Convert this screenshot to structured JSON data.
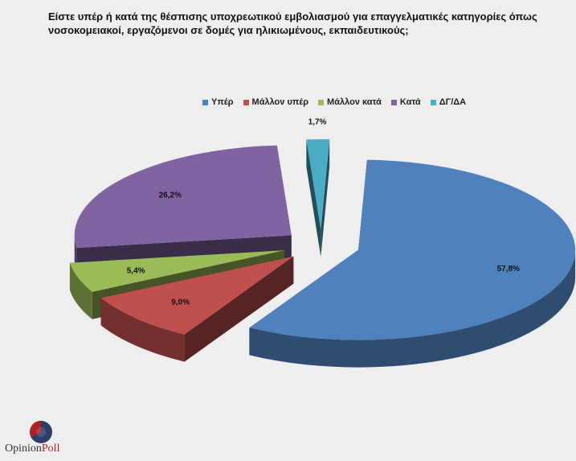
{
  "title": "Είστε υπέρ ή κατά της θέσπισης υποχρεωτικού εμβολιασμού για επαγγελματικές κατηγορίες όπως νοσοκομειακοί, εργαζόμενοι σε δομές για ηλικιωμένους, εκπαιδευτικούς;",
  "logo": {
    "part1": "Opinion",
    "part2": "Poll"
  },
  "chart_data": {
    "type": "pie",
    "legend_position": "top",
    "categories": [
      "Υπέρ",
      "Μάλλον υπέρ",
      "Μάλλον κατά",
      "Κατά",
      "ΔΓ/ΔΑ"
    ],
    "values": [
      57.8,
      9.0,
      5.4,
      26.2,
      1.7
    ],
    "data_labels": [
      "57,8%",
      "9,0%",
      "5,4%",
      "26,2%",
      "1,7%"
    ],
    "colors": [
      "#4f81bd",
      "#c0504d",
      "#9bbb59",
      "#8064a2",
      "#4bacc6"
    ]
  }
}
